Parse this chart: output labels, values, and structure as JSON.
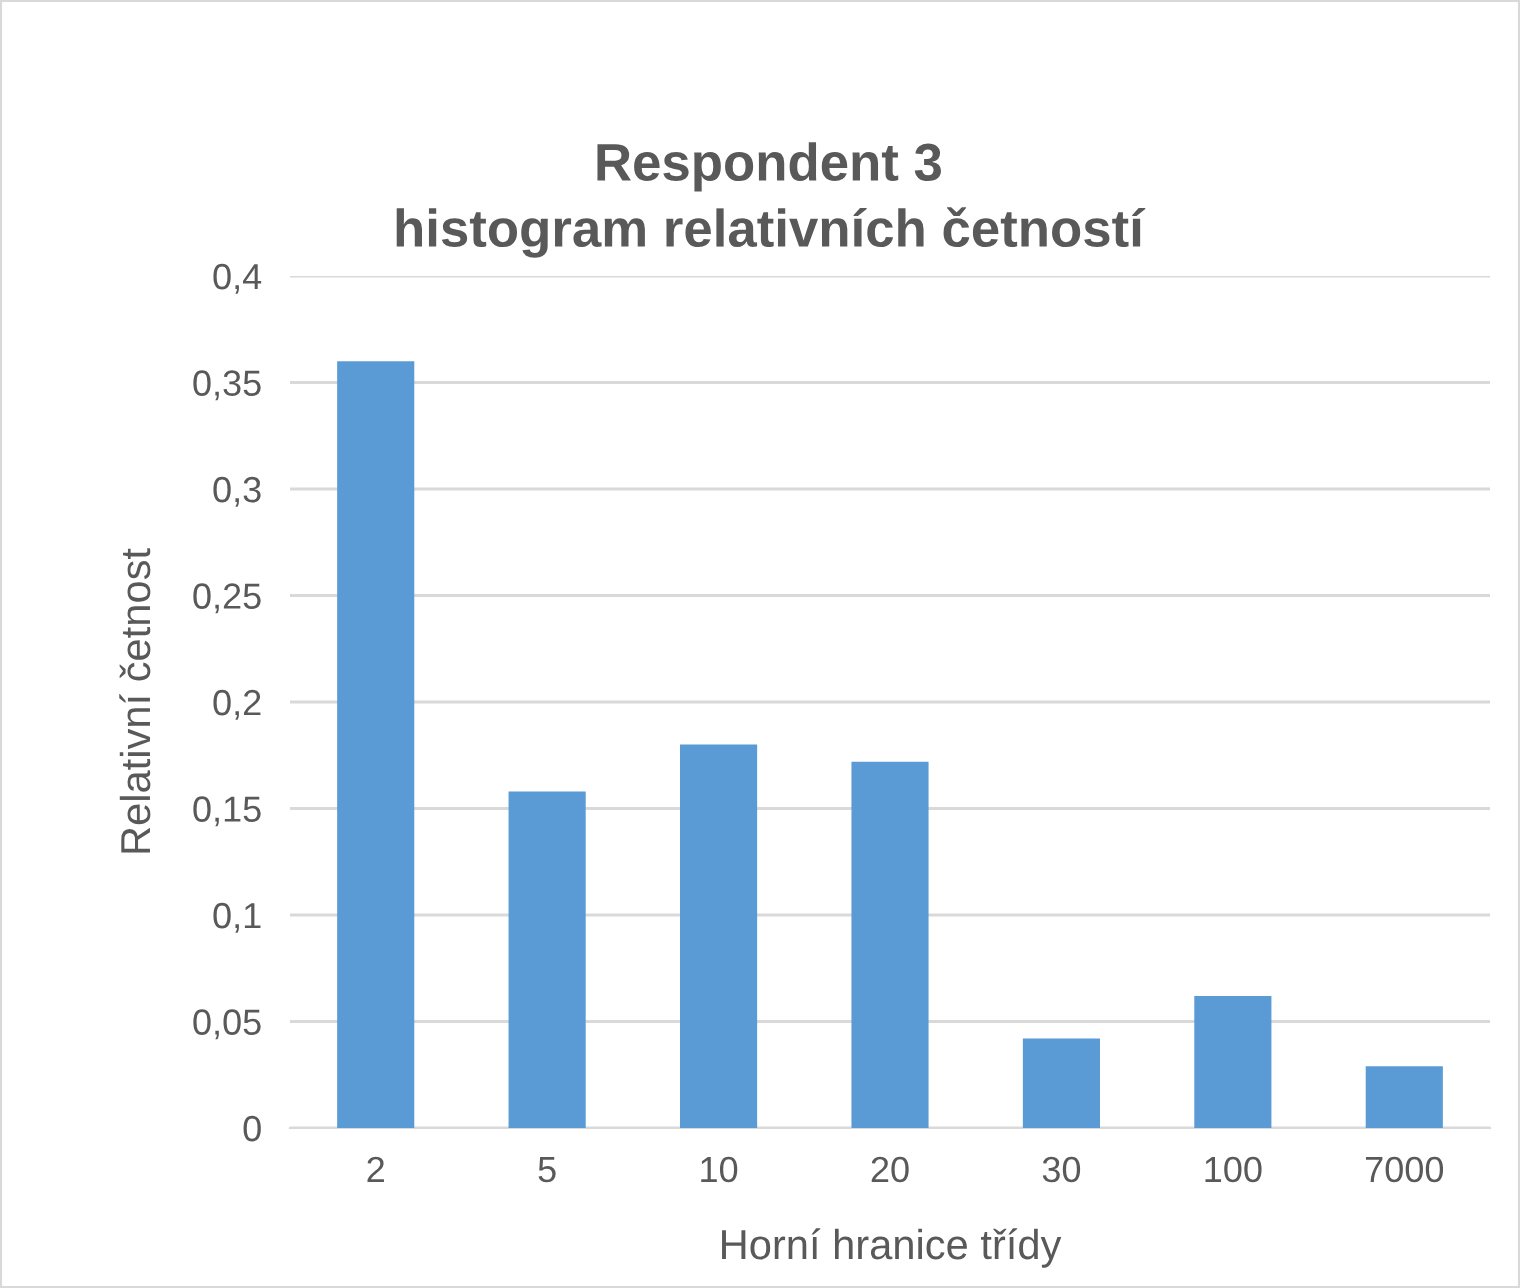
{
  "chart_data": {
    "type": "bar",
    "title": "Respondent 3\nhistogram relativních četností",
    "xlabel": "Horní hranice třídy",
    "ylabel": "Relativní četnost",
    "categories": [
      "2",
      "5",
      "10",
      "20",
      "30",
      "100",
      "7000"
    ],
    "values": [
      0.36,
      0.158,
      0.18,
      0.172,
      0.042,
      0.062,
      0.029
    ],
    "color": "#5b9bd5",
    "ylim": [
      0,
      0.4
    ],
    "yticks": [
      0,
      {
        "value": 0.05,
        "label": "0,05"
      },
      {
        "value": 0.1,
        "label": "0,1"
      },
      {
        "value": 0.15,
        "label": "0,15"
      },
      {
        "value": 0.2,
        "label": "0,2"
      },
      {
        "value": 0.25,
        "label": "0,25"
      },
      {
        "value": 0.3,
        "label": "0,3"
      },
      {
        "value": 0.35,
        "label": "0,35"
      },
      {
        "value": 0.4,
        "label": "0,4"
      }
    ],
    "grid": "y",
    "legend": false
  }
}
